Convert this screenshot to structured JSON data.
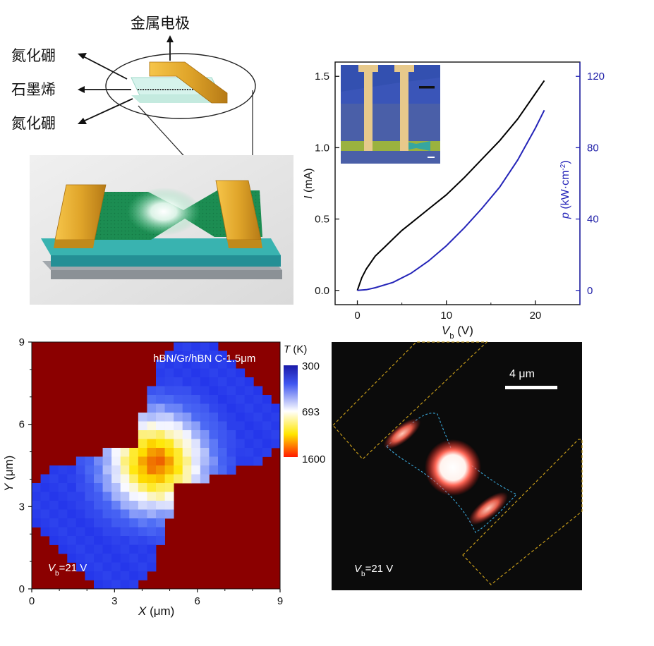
{
  "panel_a": {
    "labels": {
      "metal_electrode": "金属电极",
      "hbn_top": "氮化硼",
      "graphene": "石墨烯",
      "hbn_bottom": "氮化硼"
    }
  },
  "panel_b": {
    "chart_data": {
      "type": "line",
      "x_ticks": [
        "0",
        "10",
        "20"
      ],
      "y_left_ticks": [
        "0.0",
        "0.5",
        "1.0",
        "1.5"
      ],
      "y_right_ticks": [
        "0",
        "40",
        "80",
        "120"
      ],
      "xlabel": "V",
      "xlabel_sub": "b",
      "xlabel_unit": " (V)",
      "ylabel_left": "I",
      "ylabel_left_unit": " (mA)",
      "ylabel_right": "p",
      "ylabel_right_unit": " (kW·cm",
      "ylabel_right_sup": "-2",
      "ylabel_right_close": ")",
      "xlim": [
        -2.5,
        25
      ],
      "ylim_left": [
        -0.1,
        1.6
      ],
      "ylim_right": [
        -8,
        128
      ],
      "series": [
        {
          "axis": "left",
          "color": "#000000",
          "x": [
            0,
            0.5,
            1,
            2,
            3,
            4,
            5,
            6,
            8,
            10,
            12,
            14,
            16,
            18,
            20,
            21
          ],
          "y": [
            0,
            0.09,
            0.15,
            0.24,
            0.3,
            0.36,
            0.42,
            0.47,
            0.57,
            0.67,
            0.79,
            0.92,
            1.05,
            1.2,
            1.38,
            1.47
          ]
        },
        {
          "axis": "right",
          "color": "#2424b8",
          "x": [
            0,
            1,
            2,
            4,
            6,
            8,
            10,
            12,
            14,
            16,
            18,
            20,
            21
          ],
          "y": [
            0,
            0.4,
            1.5,
            4.5,
            9.5,
            16.5,
            25,
            35,
            46,
            58,
            73,
            91,
            101
          ]
        }
      ]
    }
  },
  "panel_c": {
    "annotation": "hBN/Gr/hBN C-1.5μm",
    "colorbar_title": "T",
    "colorbar_unit": " (K)",
    "colorbar_ticks": [
      "300",
      "693",
      "1600"
    ],
    "bias_label": "V",
    "bias_sub": "b",
    "bias_value": "=21 V",
    "x_ticks": [
      "0",
      "3",
      "6",
      "9"
    ],
    "y_ticks": [
      "0",
      "3",
      "6",
      "9"
    ],
    "xlabel": "X",
    "xlabel_unit": " (μm)",
    "ylabel": "Y",
    "ylabel_unit": " (μm)",
    "colors": {
      "background": "#8b0000",
      "cold": "#2f4bf2",
      "mid": "#ffffff",
      "warm": "#ffe600",
      "hot": "#ff2a00"
    }
  },
  "panel_d": {
    "scale_bar": "4 μm",
    "bias_label": "V",
    "bias_sub": "b",
    "bias_value": "=21 V"
  }
}
